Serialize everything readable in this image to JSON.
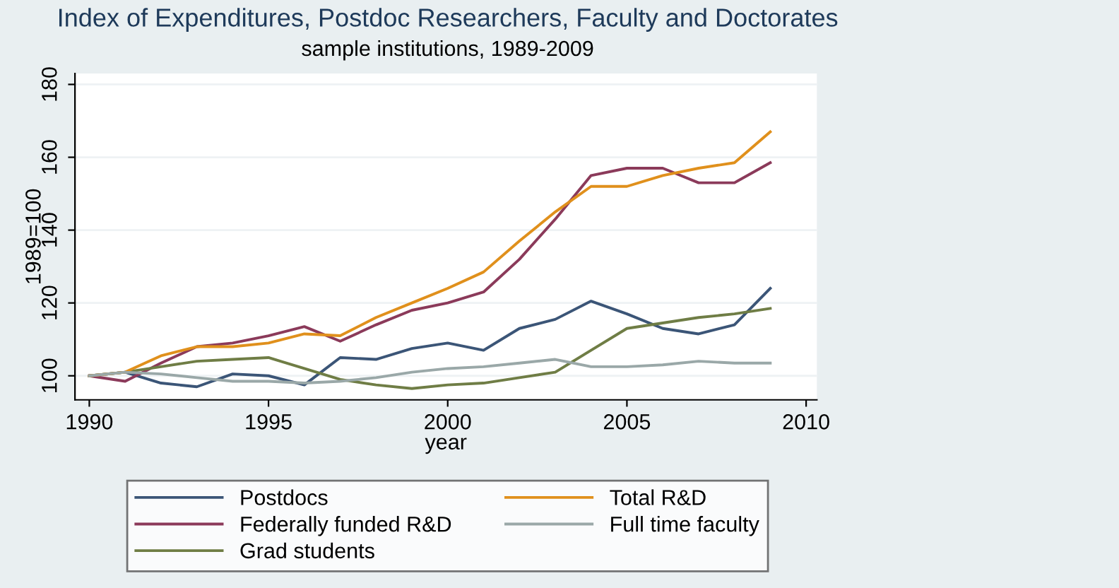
{
  "chart_data": {
    "type": "line",
    "title": "Index of Expenditures, Postdoc Researchers, Faculty and Doctorates",
    "subtitle": "sample institutions, 1989-2009",
    "xlabel": "year",
    "ylabel": "1989=100",
    "x": [
      1990,
      1991,
      1992,
      1993,
      1994,
      1995,
      1996,
      1997,
      1998,
      1999,
      2000,
      2001,
      2002,
      2003,
      2004,
      2005,
      2006,
      2007,
      2008,
      2009
    ],
    "series": [
      {
        "name": "Postdocs",
        "color": "#3b5577",
        "values": [
          100,
          101,
          98,
          97,
          100.5,
          100,
          97.5,
          105,
          104.5,
          107.5,
          109,
          107,
          113,
          115.5,
          120.5,
          117,
          113,
          111.5,
          114,
          124
        ]
      },
      {
        "name": "Federally funded R&D",
        "color": "#8b3a5a",
        "values": [
          100,
          98.5,
          103.5,
          108,
          109,
          111,
          113.5,
          109.5,
          114,
          118,
          120,
          123,
          132,
          143,
          155,
          157,
          157,
          153,
          153,
          158.5
        ]
      },
      {
        "name": "Grad students",
        "color": "#6f7d45",
        "values": [
          100,
          101,
          102.5,
          104,
          104.5,
          105,
          102,
          99,
          97.5,
          96.5,
          97.5,
          98,
          99.5,
          101,
          107,
          113,
          114.5,
          116,
          117,
          118.5
        ]
      },
      {
        "name": "Total R&D",
        "color": "#e0901c",
        "values": [
          100,
          101,
          105.5,
          108,
          108,
          109,
          111.5,
          111,
          116,
          120,
          124,
          128.5,
          137,
          145,
          152,
          152,
          155,
          157,
          158.5,
          167
        ]
      },
      {
        "name": "Full time faculty",
        "color": "#9aa8a8",
        "values": [
          100,
          101,
          100.5,
          99.5,
          98.5,
          98.5,
          98,
          98.5,
          99.5,
          101,
          102,
          102.5,
          103.5,
          104.5,
          102.5,
          102.5,
          103,
          104,
          103.5,
          103.5
        ]
      }
    ],
    "xlim": [
      1989.6,
      2010.3
    ],
    "ylim": [
      93.4,
      183
    ],
    "xticks": [
      1990,
      1995,
      2000,
      2005,
      2010
    ],
    "yticks": [
      100,
      120,
      140,
      160,
      180
    ],
    "grid": "y",
    "legend": "bottom",
    "line_style": "solid",
    "marker": "none"
  }
}
